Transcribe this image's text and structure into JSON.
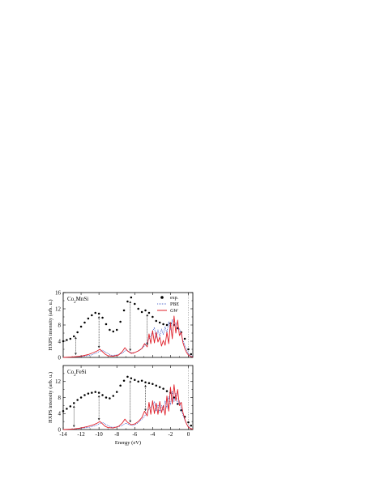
{
  "chart_data": [
    {
      "type": "scatter",
      "panel_label": "Co2MnSi",
      "xlabel": "",
      "ylabel": "HXPS intensity (arb. u.)",
      "xlim": [
        -14,
        0.5
      ],
      "ylim": [
        0,
        16
      ],
      "yticks": [
        "0",
        "4",
        "8",
        "12",
        "16"
      ],
      "xticks": [],
      "legend": {
        "position": "top-right",
        "entries": [
          {
            "label": "exp.",
            "style": "dots",
            "color": "#000000"
          },
          {
            "label": "PBE",
            "style": "dotted",
            "color": "#1f3fbf"
          },
          {
            "label": "GW",
            "style": "solid",
            "color": "#e0202a"
          }
        ]
      },
      "arrows_x": [
        -12.6,
        -10.0,
        -6.5,
        -4.6
      ],
      "series": [
        {
          "name": "exp.",
          "kind": "dots",
          "color": "#000000",
          "x": [
            -14.0,
            -13.6,
            -13.2,
            -12.8,
            -12.4,
            -12.0,
            -11.6,
            -11.2,
            -10.8,
            -10.4,
            -10.0,
            -9.6,
            -9.2,
            -8.8,
            -8.4,
            -8.0,
            -7.6,
            -7.2,
            -6.8,
            -6.4,
            -6.0,
            -5.6,
            -5.2,
            -4.8,
            -4.4,
            -4.0,
            -3.6,
            -3.2,
            -2.8,
            -2.4,
            -2.0,
            -1.6,
            -1.2,
            -0.8,
            -0.4,
            0.0,
            0.3
          ],
          "y": [
            4.0,
            4.3,
            4.6,
            5.2,
            6.2,
            7.6,
            8.6,
            9.6,
            10.4,
            11.0,
            10.8,
            9.8,
            8.2,
            6.8,
            6.4,
            6.8,
            8.8,
            11.6,
            13.8,
            14.8,
            13.2,
            12.0,
            11.2,
            11.6,
            11.0,
            10.0,
            9.0,
            8.6,
            8.2,
            8.0,
            8.4,
            8.0,
            7.2,
            6.2,
            4.6,
            2.0,
            0.8
          ]
        },
        {
          "name": "PBE",
          "kind": "dotted",
          "color": "#1f3fbf",
          "x": [
            -14.0,
            -13.0,
            -12.0,
            -11.0,
            -10.4,
            -10.0,
            -9.6,
            -9.2,
            -8.6,
            -8.0,
            -7.4,
            -7.0,
            -6.6,
            -6.2,
            -5.8,
            -5.4,
            -5.0,
            -4.6,
            -4.2,
            -3.8,
            -3.6,
            -3.4,
            -3.2,
            -3.0,
            -2.8,
            -2.6,
            -2.4,
            -2.2,
            -2.0,
            -1.8,
            -1.6,
            -1.4,
            -1.2,
            -1.0,
            -0.8,
            -0.6,
            -0.4,
            -0.2,
            0.0,
            0.2,
            0.5
          ],
          "y": [
            0.0,
            0.1,
            0.2,
            0.5,
            1.0,
            1.4,
            1.8,
            1.2,
            0.5,
            0.6,
            1.0,
            1.8,
            1.4,
            1.0,
            1.4,
            1.8,
            2.6,
            3.8,
            5.4,
            7.4,
            4.8,
            6.8,
            5.2,
            7.0,
            5.6,
            7.6,
            6.0,
            8.8,
            6.8,
            9.4,
            7.8,
            8.6,
            7.0,
            7.2,
            5.6,
            4.2,
            3.0,
            1.8,
            1.0,
            0.4,
            0.2
          ]
        },
        {
          "name": "GW",
          "kind": "solid",
          "color": "#e0202a",
          "x": [
            -14.0,
            -13.0,
            -12.0,
            -11.2,
            -10.6,
            -10.2,
            -9.9,
            -9.6,
            -9.3,
            -9.0,
            -8.4,
            -7.8,
            -7.4,
            -7.1,
            -6.8,
            -6.4,
            -6.0,
            -5.6,
            -5.2,
            -4.9,
            -4.6,
            -4.4,
            -4.2,
            -4.0,
            -3.8,
            -3.6,
            -3.4,
            -3.2,
            -3.0,
            -2.8,
            -2.6,
            -2.4,
            -2.2,
            -2.0,
            -1.8,
            -1.6,
            -1.4,
            -1.2,
            -1.0,
            -0.8,
            -0.6,
            -0.4,
            -0.2,
            0.0,
            0.2,
            0.5
          ],
          "y": [
            0.0,
            0.1,
            0.3,
            0.7,
            1.2,
            1.6,
            2.0,
            1.4,
            0.8,
            0.4,
            0.3,
            0.6,
            1.4,
            2.4,
            1.6,
            1.0,
            1.2,
            1.6,
            2.2,
            3.4,
            2.6,
            5.8,
            3.4,
            6.6,
            3.6,
            6.2,
            3.8,
            5.0,
            2.8,
            4.2,
            3.0,
            6.2,
            3.4,
            8.6,
            4.6,
            10.2,
            6.0,
            9.2,
            5.4,
            6.2,
            3.6,
            2.2,
            1.2,
            0.6,
            0.3,
            0.1
          ]
        }
      ]
    },
    {
      "type": "scatter",
      "panel_label": "Co2FeSi",
      "xlabel": "Energy (eV)",
      "ylabel": "HXPS intensity (arb. u.)",
      "xlim": [
        -14,
        0.5
      ],
      "ylim": [
        0,
        16
      ],
      "yticks": [
        "0",
        "4",
        "8",
        "12"
      ],
      "xticks": [
        "-14",
        "-12",
        "-10",
        "-8",
        "-6",
        "-4",
        "-2",
        "0"
      ],
      "arrows_x": [
        -12.8,
        -10.0,
        -6.5,
        -4.8
      ],
      "series": [
        {
          "name": "exp.",
          "kind": "dots",
          "color": "#000000",
          "x": [
            -14.0,
            -13.6,
            -13.2,
            -12.8,
            -12.4,
            -12.0,
            -11.6,
            -11.2,
            -10.8,
            -10.4,
            -10.0,
            -9.6,
            -9.2,
            -8.8,
            -8.4,
            -8.0,
            -7.6,
            -7.2,
            -6.8,
            -6.4,
            -6.0,
            -5.6,
            -5.2,
            -4.8,
            -4.4,
            -4.0,
            -3.6,
            -3.2,
            -2.8,
            -2.4,
            -2.0,
            -1.6,
            -1.2,
            -0.8,
            -0.4,
            0.0,
            0.3
          ],
          "y": [
            4.6,
            5.2,
            5.8,
            6.6,
            7.4,
            8.0,
            8.6,
            9.0,
            9.2,
            9.4,
            9.2,
            8.6,
            8.0,
            7.8,
            8.4,
            9.4,
            11.0,
            12.2,
            13.2,
            12.8,
            12.4,
            12.0,
            12.2,
            11.8,
            11.6,
            11.4,
            11.0,
            10.6,
            10.2,
            9.6,
            9.2,
            8.0,
            6.4,
            4.8,
            3.2,
            1.8,
            1.0
          ]
        },
        {
          "name": "PBE",
          "kind": "dotted",
          "color": "#1f3fbf",
          "x": [
            -14.0,
            -13.0,
            -12.0,
            -11.0,
            -10.4,
            -10.0,
            -9.6,
            -9.2,
            -8.6,
            -8.0,
            -7.4,
            -7.0,
            -6.6,
            -6.2,
            -5.8,
            -5.4,
            -5.0,
            -4.6,
            -4.2,
            -3.8,
            -3.6,
            -3.4,
            -3.2,
            -3.0,
            -2.8,
            -2.6,
            -2.4,
            -2.2,
            -2.0,
            -1.8,
            -1.6,
            -1.4,
            -1.2,
            -1.0,
            -0.8,
            -0.6,
            -0.4,
            -0.2,
            0.0,
            0.2,
            0.5
          ],
          "y": [
            0.0,
            0.1,
            0.3,
            0.6,
            1.0,
            1.4,
            1.8,
            1.2,
            0.6,
            0.6,
            1.0,
            1.6,
            1.2,
            1.0,
            1.4,
            2.2,
            3.0,
            4.4,
            5.6,
            7.0,
            4.6,
            6.2,
            4.4,
            6.0,
            4.8,
            7.2,
            5.4,
            8.2,
            6.2,
            9.6,
            7.0,
            9.0,
            6.4,
            7.2,
            5.0,
            3.6,
            2.4,
            1.4,
            0.8,
            0.3,
            0.1
          ]
        },
        {
          "name": "GW",
          "kind": "solid",
          "color": "#e0202a",
          "x": [
            -14.0,
            -13.0,
            -12.0,
            -11.2,
            -10.6,
            -10.2,
            -9.9,
            -9.6,
            -9.3,
            -9.0,
            -8.4,
            -7.8,
            -7.4,
            -7.1,
            -6.8,
            -6.4,
            -6.0,
            -5.6,
            -5.2,
            -4.9,
            -4.6,
            -4.4,
            -4.2,
            -4.0,
            -3.8,
            -3.6,
            -3.4,
            -3.2,
            -3.0,
            -2.8,
            -2.6,
            -2.4,
            -2.2,
            -2.0,
            -1.8,
            -1.6,
            -1.4,
            -1.2,
            -1.0,
            -0.8,
            -0.6,
            -0.4,
            -0.2,
            0.0,
            0.2,
            0.5
          ],
          "y": [
            0.0,
            0.1,
            0.4,
            0.8,
            1.2,
            1.6,
            2.0,
            1.4,
            0.8,
            0.5,
            0.4,
            0.8,
            1.6,
            2.6,
            1.8,
            1.2,
            1.4,
            2.0,
            3.0,
            4.6,
            3.4,
            6.8,
            3.8,
            7.2,
            4.0,
            6.6,
            3.8,
            7.0,
            4.2,
            6.0,
            3.6,
            8.4,
            4.6,
            10.6,
            6.4,
            11.2,
            7.2,
            10.0,
            6.0,
            6.8,
            4.2,
            2.6,
            1.4,
            0.6,
            0.3,
            0.1
          ]
        }
      ]
    }
  ]
}
